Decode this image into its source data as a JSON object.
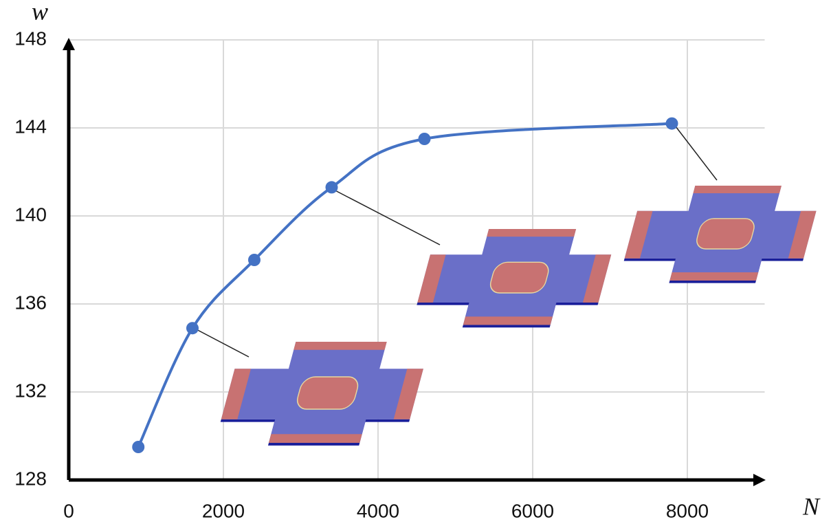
{
  "chart_data": {
    "type": "line",
    "x_label": "N",
    "y_label": "w",
    "x": [
      900,
      1600,
      2400,
      3400,
      4600,
      7800
    ],
    "values": [
      129.5,
      134.9,
      138.0,
      141.3,
      143.5,
      144.2
    ],
    "color": "#4472c4",
    "xlim": [
      0,
      9000
    ],
    "xticks": [
      0,
      2000,
      4000,
      6000,
      8000
    ],
    "ylim": [
      128,
      148
    ],
    "yticks": [
      128,
      132,
      136,
      140,
      144,
      148
    ],
    "grid": true
  }
}
